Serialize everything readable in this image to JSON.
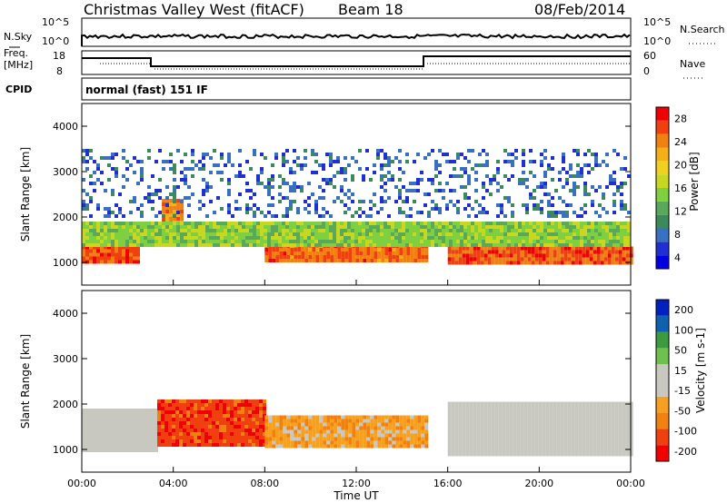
{
  "header": {
    "station": "Christmas Valley West (fitACF)",
    "beam": "Beam 18",
    "date": "08/Feb/2014"
  },
  "summary_panels": {
    "nsky": {
      "label": "N.Sky",
      "ticks": [
        "10^5",
        "10^0"
      ]
    },
    "nsearch": {
      "label": "N.Search",
      "ticks": [
        "10^5",
        "10^0"
      ]
    },
    "freq": {
      "label_1": "Freq.",
      "label_2": "[MHz]",
      "ticks": [
        "18",
        "8"
      ]
    },
    "nave": {
      "label": "Nave",
      "ticks": [
        "60",
        "0"
      ]
    },
    "cpid": {
      "label": "CPID",
      "value": "normal (fast) 151 IF"
    }
  },
  "chart_data": [
    {
      "type": "heatmap",
      "panel": "power",
      "title": "",
      "xlabel": "",
      "ylabel": "Slant Range [km]",
      "ylim": [
        500,
        4500
      ],
      "xlim_hours": [
        0,
        24
      ],
      "yticks": [
        "1000",
        "2000",
        "3000",
        "4000"
      ],
      "colorbar": {
        "label": "Power [dB]",
        "range": [
          0,
          30
        ],
        "ticks": [
          "28",
          "24",
          "20",
          "16",
          "12",
          "8",
          "4"
        ],
        "colors": [
          "#0000e0",
          "#2030d0",
          "#3a70c0",
          "#3c8a5c",
          "#5aa85a",
          "#7fd040",
          "#c8d820",
          "#f0d020",
          "#f5b018",
          "#f08010",
          "#f04010",
          "#f00000"
        ]
      },
      "bands": [
        {
          "hours": [
            0.0,
            2.5
          ],
          "range_km": [
            1000,
            1450
          ],
          "value_db": 26
        },
        {
          "hours": [
            3.5,
            4.3
          ],
          "range_km": [
            1500,
            2400
          ],
          "value_db": 24
        },
        {
          "hours": [
            8.0,
            15.0
          ],
          "range_km": [
            1050,
            1400
          ],
          "value_db": 25
        },
        {
          "hours": [
            16.0,
            24.0
          ],
          "range_km": [
            950,
            1350
          ],
          "value_db": 26
        },
        {
          "hours": [
            0.0,
            24.0
          ],
          "range_km": [
            1400,
            1900
          ],
          "value_db": 14
        },
        {
          "hours": [
            0.0,
            24.0
          ],
          "range_km": [
            2000,
            3500
          ],
          "value_db": 6
        }
      ]
    },
    {
      "type": "heatmap",
      "panel": "velocity",
      "title": "",
      "xlabel": "Time UT",
      "ylabel": "Slant Range [km]",
      "ylim": [
        500,
        4500
      ],
      "xlim_hours": [
        0,
        24
      ],
      "xticks": [
        "00:00",
        "04:00",
        "08:00",
        "12:00",
        "16:00",
        "20:00",
        "00:00"
      ],
      "yticks": [
        "1000",
        "2000",
        "3000",
        "4000"
      ],
      "colorbar": {
        "label": "Velocity [m s-1]",
        "range": [
          -250,
          250
        ],
        "ticks": [
          "200",
          "100",
          "50",
          "15",
          "-15",
          "-50",
          "-100",
          "-200"
        ],
        "colors": [
          "#f00000",
          "#f04010",
          "#f08010",
          "#f5a020",
          "#c8c8c0",
          "#c8c8c0",
          "#70c050",
          "#3c9a40",
          "#1060b0",
          "#0020c0"
        ]
      },
      "bands": [
        {
          "hours": [
            0.0,
            3.3
          ],
          "range_km": [
            1000,
            1900
          ],
          "value_ms": 0
        },
        {
          "hours": [
            3.3,
            8.0
          ],
          "range_km": [
            1100,
            2100
          ],
          "value_ms": -180
        },
        {
          "hours": [
            8.0,
            15.0
          ],
          "range_km": [
            1100,
            1750
          ],
          "value_ms": -80
        },
        {
          "hours": [
            16.0,
            24.0
          ],
          "range_km": [
            900,
            2050
          ],
          "value_ms": 0
        }
      ]
    }
  ]
}
